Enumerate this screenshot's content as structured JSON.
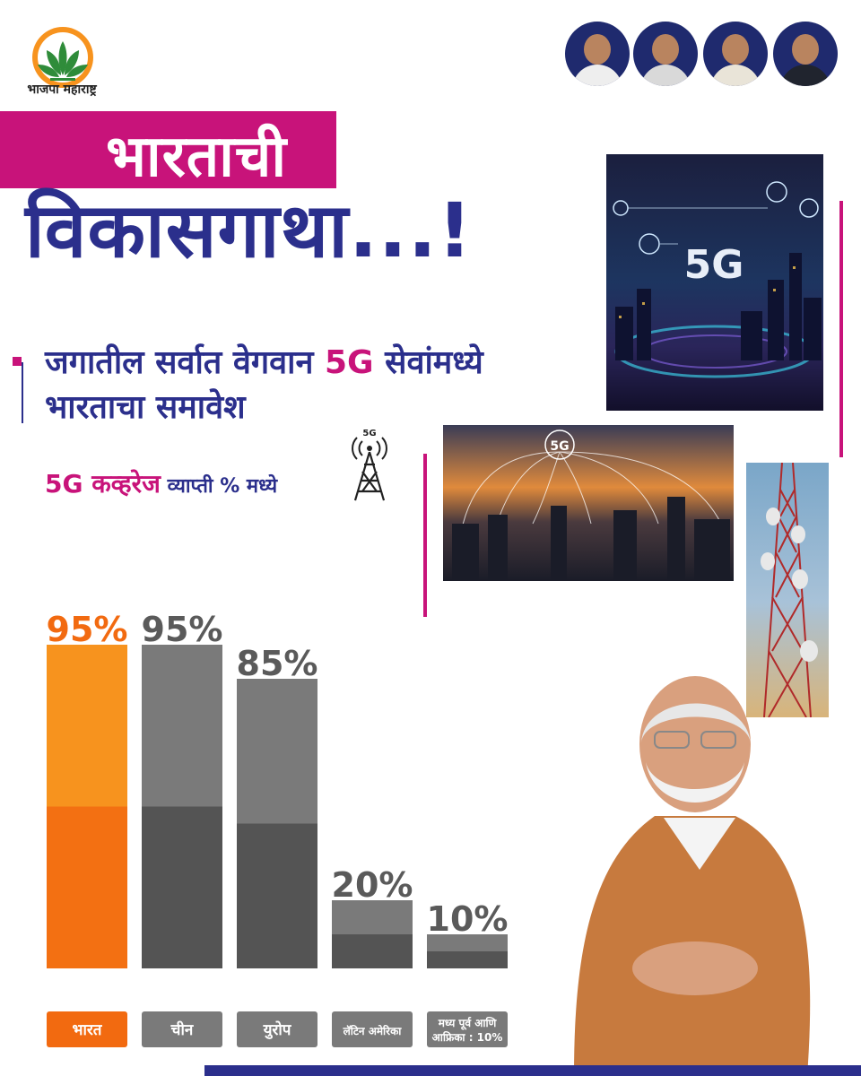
{
  "brand": {
    "logo_text": "भाजपा महाराष्ट्र",
    "colors": {
      "pink": "#c8137a",
      "navy": "#2b2f8c",
      "orange": "#f7931e",
      "gray": "#6e6e6e"
    }
  },
  "headline": {
    "line1": "भारताची",
    "line2": "विकासगाथा...!"
  },
  "subheading": {
    "part1": "जगातील सर्वात वेगवान ",
    "highlight": "5G",
    "part2": " सेवांमध्ये",
    "line2": "भारताचा समावेश"
  },
  "coverage_label": {
    "part1": "5G कव्हरेज",
    "part2": " व्याप्ती % मध्ये"
  },
  "images": {
    "city_top_label": "5G",
    "city_mid_label": "5G",
    "tower_icon_label": "5G"
  },
  "chart_data": {
    "type": "bar",
    "title": "5G कव्हरेज व्याप्ती % मध्ये",
    "categories": [
      "भारत",
      "चीन",
      "युरोप",
      "लॅटिन अमेरिका",
      "मध्य पूर्व आणि आफ्रिका : 10%"
    ],
    "category_lines": [
      [
        "भारत"
      ],
      [
        "चीन"
      ],
      [
        "युरोप"
      ],
      [
        "लॅटिन अमेरिका"
      ],
      [
        "मध्य पूर्व आणि",
        "आफ्रिका : 10%"
      ]
    ],
    "values": [
      95,
      95,
      85,
      20,
      10
    ],
    "value_labels": [
      "95%",
      "95%",
      "85%",
      "20%",
      "10%"
    ],
    "ylim": [
      0,
      100
    ],
    "highlight_category": "भारत",
    "colors": {
      "highlight": "#f7931e",
      "other": "#7a7a7a"
    },
    "grid": false
  }
}
